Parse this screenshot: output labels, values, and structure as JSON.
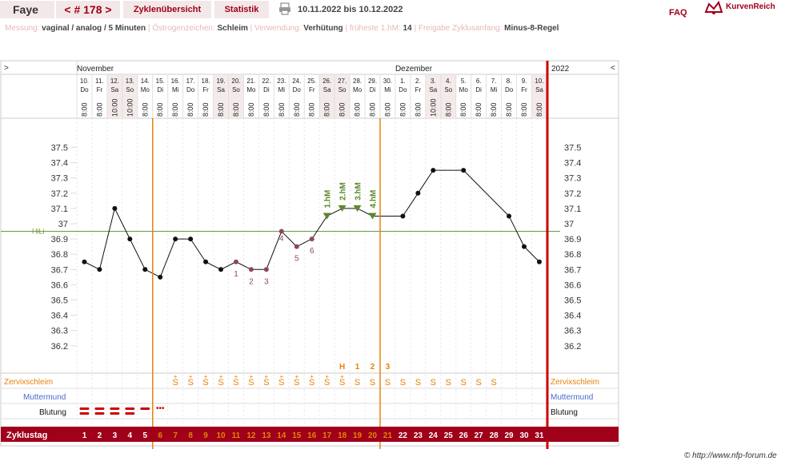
{
  "header": {
    "name": "Faye",
    "cycle_label": "< # 178 >",
    "tab_overview": "Zyklenübersicht",
    "tab_stats": "Statistik",
    "date_range": "10.11.2022 bis 10.12.2022",
    "faq": "FAQ",
    "brand": "KurvenReich"
  },
  "info": [
    {
      "label": "Messung:",
      "value": "vaginal / analog / 5 Minuten"
    },
    {
      "label": "Östrogenzeichen:",
      "value": "Schleim"
    },
    {
      "label": "Verwendung:",
      "value": "Verhütung"
    },
    {
      "label": "früheste 1.hM:",
      "value": "14"
    },
    {
      "label": "Freigabe Zyklusanfang:",
      "value": "Minus-8-Regel"
    }
  ],
  "nav": {
    "left": ">",
    "right": "<"
  },
  "months": [
    {
      "label": "November",
      "day_index": 0
    },
    {
      "label": "Dezember",
      "day_index": 21
    }
  ],
  "year": "2022",
  "days": [
    {
      "d": "10.",
      "wd": "Do",
      "t": "8:00"
    },
    {
      "d": "11.",
      "wd": "Fr",
      "t": "8:00"
    },
    {
      "d": "12.",
      "wd": "Sa",
      "t": "10:00"
    },
    {
      "d": "13.",
      "wd": "So",
      "t": "10:00"
    },
    {
      "d": "14.",
      "wd": "Mo",
      "t": "8:00"
    },
    {
      "d": "15.",
      "wd": "Di",
      "t": "8:00"
    },
    {
      "d": "16.",
      "wd": "Mi",
      "t": "8:00"
    },
    {
      "d": "17.",
      "wd": "Do",
      "t": "8:00"
    },
    {
      "d": "18.",
      "wd": "Fr",
      "t": "8:00"
    },
    {
      "d": "19.",
      "wd": "Sa",
      "t": "8:00"
    },
    {
      "d": "20.",
      "wd": "So",
      "t": "8:00"
    },
    {
      "d": "21.",
      "wd": "Mo",
      "t": "8:00"
    },
    {
      "d": "22.",
      "wd": "Di",
      "t": "8:00"
    },
    {
      "d": "23.",
      "wd": "Mi",
      "t": "8:00"
    },
    {
      "d": "24.",
      "wd": "Do",
      "t": "8:00"
    },
    {
      "d": "25.",
      "wd": "Fr",
      "t": "8:00"
    },
    {
      "d": "26.",
      "wd": "Sa",
      "t": "8:00"
    },
    {
      "d": "27.",
      "wd": "So",
      "t": "8:00"
    },
    {
      "d": "28.",
      "wd": "Mo",
      "t": "8:00"
    },
    {
      "d": "29.",
      "wd": "Di",
      "t": "8:00"
    },
    {
      "d": "30.",
      "wd": "Mi",
      "t": "8:00"
    },
    {
      "d": "1.",
      "wd": "Do",
      "t": "8:00"
    },
    {
      "d": "2.",
      "wd": "Fr",
      "t": "8:00"
    },
    {
      "d": "3.",
      "wd": "Sa",
      "t": "10:00"
    },
    {
      "d": "4.",
      "wd": "So",
      "t": "8:00"
    },
    {
      "d": "5.",
      "wd": "Mo",
      "t": "8:00"
    },
    {
      "d": "6.",
      "wd": "Di",
      "t": "8:00"
    },
    {
      "d": "7.",
      "wd": "Mi",
      "t": "8:00"
    },
    {
      "d": "8.",
      "wd": "Do",
      "t": "8:00"
    },
    {
      "d": "9.",
      "wd": "Fr",
      "t": "8:00"
    },
    {
      "d": "10.",
      "wd": "Sa",
      "t": "8:00"
    }
  ],
  "row_labels": {
    "zervix": "Zervixschleim",
    "mutter": "Muttermund",
    "blutung": "Blutung",
    "zyklustag": "Zyklustag"
  },
  "copyright": "© http://www.nfp-forum.de",
  "colors": {
    "accent": "#a0001a",
    "orange": "#e8820a",
    "green": "#5a8a2a",
    "purple": "#8a4a5a",
    "blue": "#4a6ad0"
  },
  "chart_data": {
    "type": "line",
    "y_ticks": [
      "37.5",
      "37.4",
      "37.3",
      "37.2",
      "37.1",
      "37",
      "36.9",
      "36.8",
      "36.7",
      "36.6",
      "36.5",
      "36.4",
      "36.3",
      "36.2"
    ],
    "ylim": [
      36.15,
      37.55
    ],
    "cycle_days": [
      "1",
      "2",
      "3",
      "4",
      "5",
      "6",
      "7",
      "8",
      "9",
      "10",
      "11",
      "12",
      "13",
      "14",
      "15",
      "16",
      "17",
      "18",
      "19",
      "20",
      "21",
      "22",
      "23",
      "24",
      "25",
      "26",
      "27",
      "28",
      "29",
      "30",
      "31"
    ],
    "temps": [
      36.75,
      36.7,
      37.1,
      36.9,
      36.7,
      36.65,
      36.9,
      36.9,
      36.75,
      36.7,
      36.75,
      36.7,
      36.7,
      36.95,
      36.85,
      36.9,
      37.05,
      37.1,
      37.1,
      37.05,
      null,
      37.05,
      37.2,
      37.35,
      null,
      37.35,
      null,
      null,
      37.05,
      36.85,
      36.75
    ],
    "point_styles": [
      "n",
      "n",
      "n",
      "n",
      "n",
      "n",
      "n",
      "n",
      "n",
      "n",
      "l",
      "l",
      "l",
      "l",
      "l",
      "l",
      "h",
      "h",
      "h",
      "h",
      "x",
      "n",
      "n",
      "n",
      "x",
      "n",
      "x",
      "x",
      "n",
      "n",
      "n"
    ],
    "connect_gaps": [
      [
        20,
        22
      ]
    ],
    "hili": {
      "label": "HiLi",
      "value": 36.95
    },
    "low_labels": [
      {
        "day": 11,
        "text": "1"
      },
      {
        "day": 12,
        "text": "2"
      },
      {
        "day": 13,
        "text": "3"
      },
      {
        "day": 14,
        "text": "4"
      },
      {
        "day": 15,
        "text": "5"
      },
      {
        "day": 16,
        "text": "6"
      }
    ],
    "high_labels": [
      {
        "day": 17,
        "text": "1.hM"
      },
      {
        "day": 18,
        "text": "2.hM"
      },
      {
        "day": 19,
        "text": "3.hM"
      },
      {
        "day": 20,
        "text": "4.hM"
      }
    ],
    "peak_labels": [
      {
        "day": 18,
        "text": "H"
      },
      {
        "day": 19,
        "text": "1"
      },
      {
        "day": 20,
        "text": "2"
      },
      {
        "day": 21,
        "text": "3"
      }
    ],
    "zervix": [
      "",
      "",
      "",
      "",
      "",
      "",
      "S+",
      "S+",
      "S+",
      "S+",
      "S+",
      "S+",
      "S+",
      "S+",
      "S+",
      "S+",
      "S+",
      "S+",
      "S",
      "S",
      "S",
      "S",
      "S",
      "S",
      "S",
      "S",
      "S",
      "S",
      "",
      "",
      ""
    ],
    "blutung": [
      "heavy",
      "heavy",
      "heavy",
      "heavy",
      "medium",
      "spot",
      "",
      "",
      "",
      "",
      "",
      "",
      "",
      "",
      "",
      "",
      "",
      "",
      "",
      "",
      "",
      "",
      "",
      "",
      "",
      "",
      "",
      "",
      "",
      "",
      ""
    ],
    "orange_markers": [
      6,
      21
    ]
  }
}
